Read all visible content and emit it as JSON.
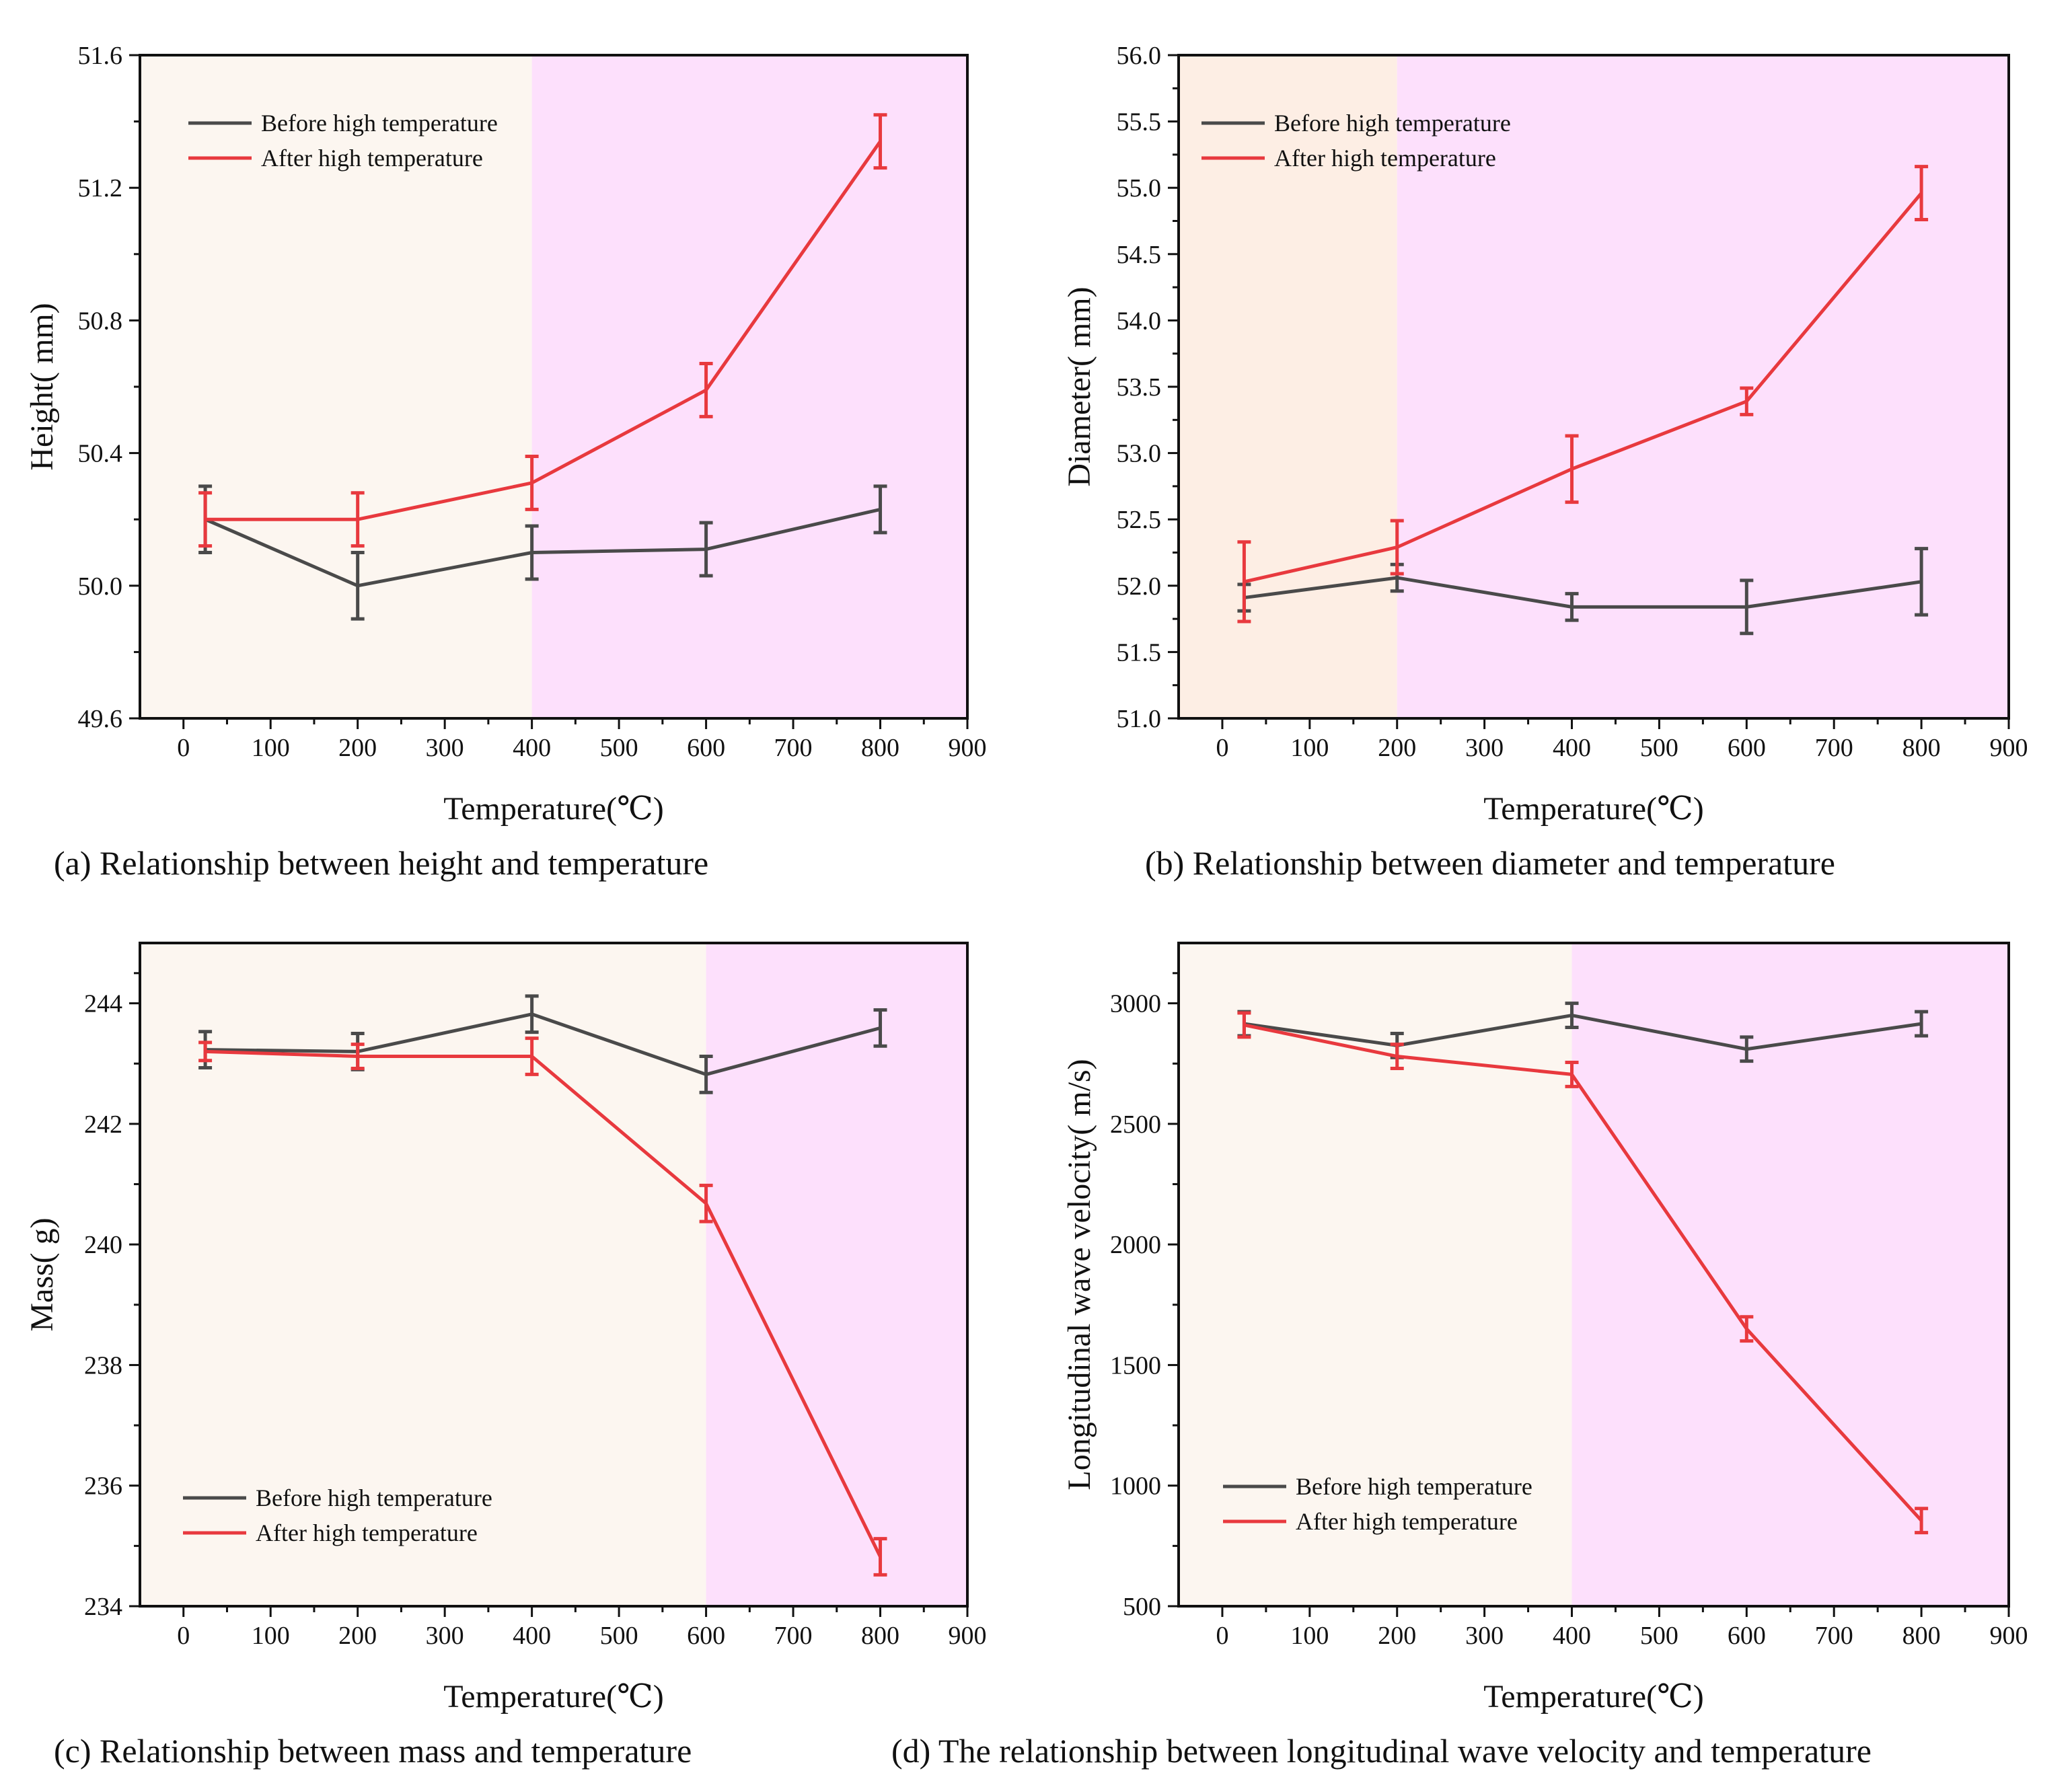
{
  "colors": {
    "before": "#4a4a4a",
    "after": "#e8393e",
    "bg_low": "#fcf6f0",
    "bg_mid": "#fdeee4",
    "bg_high": "#fde0fc",
    "axis": "#111111"
  },
  "chart_data": [
    {
      "id": "a",
      "type": "line",
      "caption": "(a) Relationship between height and temperature",
      "xlabel": "Temperature(℃)",
      "ylabel": "Height( mm)",
      "xlim": [
        -50,
        900
      ],
      "ylim": [
        49.6,
        51.6
      ],
      "xticks": [
        0,
        100,
        200,
        300,
        400,
        500,
        600,
        700,
        800,
        900
      ],
      "yticks": [
        "49.6",
        "50.0",
        "50.4",
        "50.8",
        "51.2",
        "51.6"
      ],
      "regions": [
        {
          "from": -50,
          "to": 400,
          "color": "bg_low"
        },
        {
          "from": 400,
          "to": 900,
          "color": "bg_high"
        }
      ],
      "legend_position": "top-left",
      "x": [
        25,
        200,
        400,
        600,
        800
      ],
      "series": [
        {
          "name": "Before high temperature",
          "color": "before",
          "values": [
            50.2,
            50.0,
            50.1,
            50.11,
            50.23
          ],
          "errors": [
            0.1,
            0.1,
            0.08,
            0.08,
            0.07
          ]
        },
        {
          "name": "After high temperature",
          "color": "after",
          "values": [
            50.2,
            50.2,
            50.31,
            50.59,
            51.34
          ],
          "errors": [
            0.08,
            0.08,
            0.08,
            0.08,
            0.08
          ]
        }
      ]
    },
    {
      "id": "b",
      "type": "line",
      "caption": "(b) Relationship between diameter and temperature",
      "xlabel": "Temperature(℃)",
      "ylabel": "Diameter( mm)",
      "xlim": [
        -50,
        900
      ],
      "ylim": [
        51.0,
        56.0
      ],
      "xticks": [
        0,
        100,
        200,
        300,
        400,
        500,
        600,
        700,
        800,
        900
      ],
      "yticks": [
        "51.0",
        "51.5",
        "52.0",
        "52.5",
        "53.0",
        "53.5",
        "54.0",
        "54.5",
        "55.0",
        "55.5",
        "56.0"
      ],
      "regions": [
        {
          "from": -50,
          "to": 200,
          "color": "bg_mid"
        },
        {
          "from": 200,
          "to": 900,
          "color": "bg_high"
        }
      ],
      "legend_position": "top-left",
      "x": [
        25,
        200,
        400,
        600,
        800
      ],
      "series": [
        {
          "name": "Before high temperature",
          "color": "before",
          "values": [
            51.91,
            52.06,
            51.84,
            51.84,
            52.03
          ],
          "errors": [
            0.1,
            0.1,
            0.1,
            0.2,
            0.25
          ]
        },
        {
          "name": "After high temperature",
          "color": "after",
          "values": [
            52.03,
            52.29,
            52.88,
            53.39,
            54.96
          ],
          "errors": [
            0.3,
            0.2,
            0.25,
            0.1,
            0.2
          ]
        }
      ]
    },
    {
      "id": "c",
      "type": "line",
      "caption": "(c) Relationship between mass and temperature",
      "xlabel": "Temperature(℃)",
      "ylabel": "Mass( g)",
      "xlim": [
        -50,
        900
      ],
      "ylim": [
        234,
        245
      ],
      "xticks": [
        0,
        100,
        200,
        300,
        400,
        500,
        600,
        700,
        800,
        900
      ],
      "yticks": [
        "234",
        "236",
        "238",
        "240",
        "242",
        "244"
      ],
      "regions": [
        {
          "from": -50,
          "to": 600,
          "color": "bg_low"
        },
        {
          "from": 600,
          "to": 900,
          "color": "bg_high"
        }
      ],
      "legend_position": "bottom-left",
      "x": [
        25,
        200,
        400,
        600,
        800
      ],
      "series": [
        {
          "name": "Before high temperature",
          "color": "before",
          "values": [
            243.23,
            243.2,
            243.82,
            242.82,
            243.59
          ],
          "errors": [
            0.3,
            0.3,
            0.3,
            0.3,
            0.3
          ]
        },
        {
          "name": "After high temperature",
          "color": "after",
          "values": [
            243.2,
            243.12,
            243.12,
            240.68,
            234.82
          ],
          "errors": [
            0.15,
            0.2,
            0.3,
            0.3,
            0.3
          ]
        }
      ]
    },
    {
      "id": "d",
      "type": "line",
      "caption": "(d) The relationship between longitudinal wave velocity and temperature",
      "xlabel": "Temperature(℃)",
      "ylabel": "Longitudinal wave velocity( m/s)",
      "xlim": [
        -50,
        900
      ],
      "ylim": [
        500,
        3250
      ],
      "xticks": [
        0,
        100,
        200,
        300,
        400,
        500,
        600,
        700,
        800,
        900
      ],
      "yticks": [
        "500",
        "1000",
        "1500",
        "2000",
        "2500",
        "3000"
      ],
      "regions": [
        {
          "from": -50,
          "to": 400,
          "color": "bg_low"
        },
        {
          "from": 400,
          "to": 900,
          "color": "bg_high"
        }
      ],
      "legend_position": "bottom-left",
      "x": [
        25,
        200,
        400,
        600,
        800
      ],
      "series": [
        {
          "name": "Before high temperature",
          "color": "before",
          "values": [
            2915,
            2825,
            2950,
            2810,
            2915
          ],
          "errors": [
            50,
            50,
            50,
            50,
            50
          ]
        },
        {
          "name": "After high temperature",
          "color": "after",
          "values": [
            2910,
            2780,
            2705,
            1650,
            855
          ],
          "errors": [
            50,
            50,
            50,
            50,
            50
          ]
        }
      ]
    }
  ]
}
